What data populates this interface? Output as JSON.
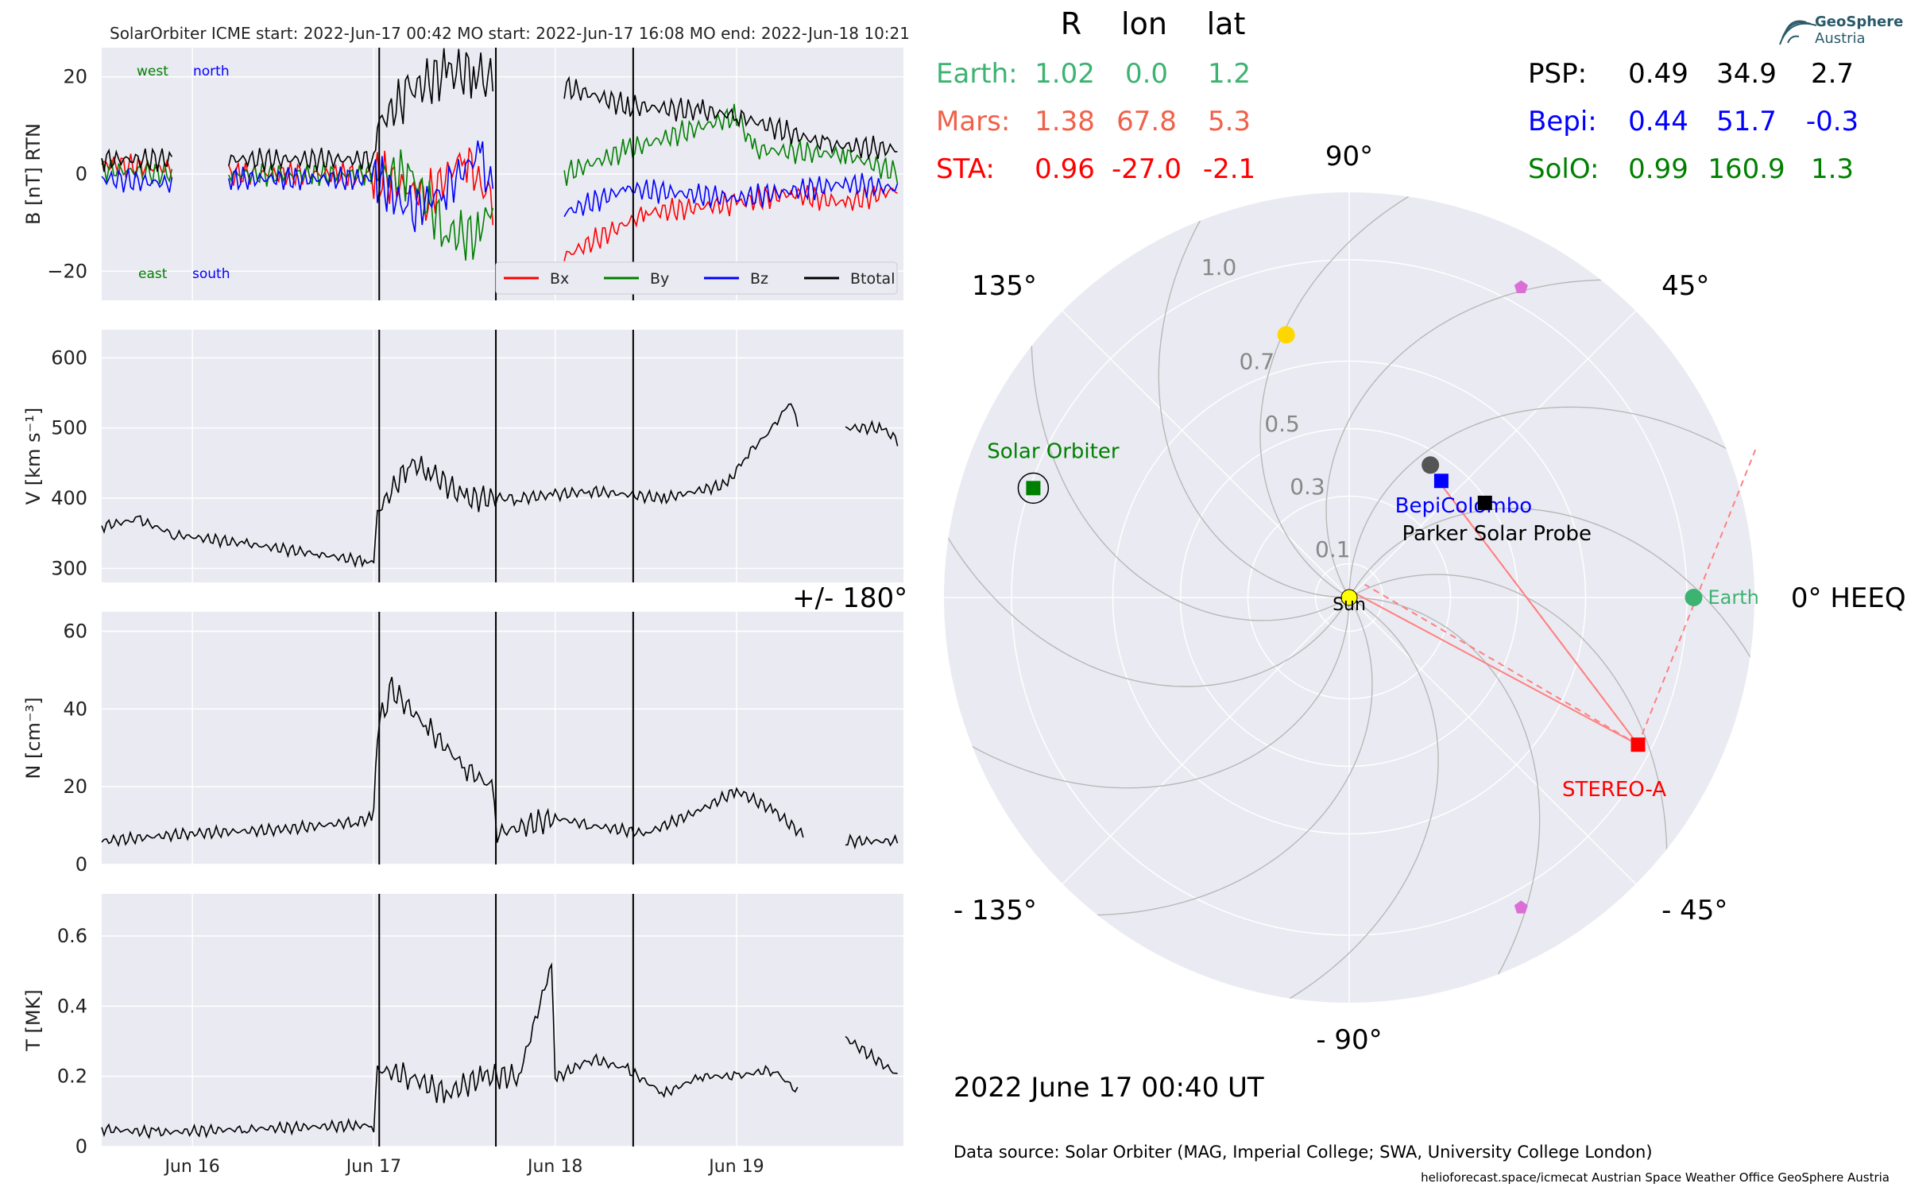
{
  "header": {
    "title": "SolarOrbiter    ICME start: 2022-Jun-17 00:42   MO start: 2022-Jun-17 16:08   MO end: 2022-Jun-18 10:21"
  },
  "logo": {
    "line1": "GeoSphere",
    "line2": "Austria"
  },
  "position_table": {
    "headers": [
      "R",
      "lon",
      "lat"
    ],
    "left_rows": [
      {
        "name": "Earth:",
        "R": "1.02",
        "lon": "0.0",
        "lat": "1.2",
        "color": "#3cb371"
      },
      {
        "name": "Mars:",
        "R": "1.38",
        "lon": "67.8",
        "lat": "5.3",
        "color": "#f0614a"
      },
      {
        "name": "STA:",
        "R": "0.96",
        "lon": "-27.0",
        "lat": "-2.1",
        "color": "#ff0000"
      }
    ],
    "right_rows": [
      {
        "name": "PSP:",
        "R": "0.49",
        "lon": "34.9",
        "lat": "2.7",
        "color": "#000000"
      },
      {
        "name": "Bepi:",
        "R": "0.44",
        "lon": "51.7",
        "lat": "-0.3",
        "color": "#0000ff"
      },
      {
        "name": "SolO:",
        "R": "0.99",
        "lon": "160.9",
        "lat": "1.3",
        "color": "#008000"
      }
    ]
  },
  "polar": {
    "angle_labels": [
      "0° HEEQ",
      "45°",
      "90°",
      "135°",
      "+/- 180°",
      "- 135°",
      "- 90°",
      "- 45°"
    ],
    "radial_labels": [
      "0.1",
      "0.3",
      "0.5",
      "0.7",
      "1.0"
    ],
    "date_label": "2022 June 17  00:40 UT",
    "bodies": [
      {
        "name": "Earth",
        "r": 1.02,
        "lon": 0.0,
        "color": "#3cb371",
        "marker": "circle"
      },
      {
        "name": "STEREO-A",
        "r": 0.96,
        "lon": -27.0,
        "color": "#ff0000",
        "marker": "square"
      },
      {
        "name": "Solar Orbiter",
        "r": 0.99,
        "lon": 160.9,
        "color": "#008000",
        "marker": "square"
      },
      {
        "name": "BepiColombo",
        "r": 0.44,
        "lon": 51.7,
        "color": "#0000ff",
        "marker": "square"
      },
      {
        "name": "Parker Solar Probe",
        "r": 0.49,
        "lon": 34.9,
        "color": "#000000",
        "marker": "square"
      },
      {
        "name": "Sun",
        "r": 0,
        "lon": 0,
        "color": "#ffff00",
        "marker": "circle"
      }
    ],
    "unlabeled_markers": [
      {
        "r": 0.8,
        "lon": 103.5,
        "color": "#ffd700",
        "marker": "circle"
      },
      {
        "r": 0.46,
        "lon": 58.5,
        "color": "#555555",
        "marker": "circle"
      },
      {
        "r": 1.05,
        "lon": 61,
        "color": "#da70d6",
        "marker": "pentagon"
      },
      {
        "r": 1.05,
        "lon": -61,
        "color": "#da70d6",
        "marker": "pentagon"
      }
    ]
  },
  "footer": {
    "source": "Data source: Solar Orbiter (MAG, Imperial College; SWA, University College London)",
    "credits": "helioforecast.space/icmecat   Austrian Space Weather Office   GeoSphere Austria"
  },
  "chart_data": [
    {
      "type": "line",
      "ylabel": "B [nT] RTN",
      "ylim": [
        -26,
        26
      ],
      "yticks": [
        20,
        0,
        -20
      ],
      "ytick_labels": [
        "20",
        "0",
        "−20"
      ],
      "annotations": {
        "top_left": "west",
        "top_right": "north",
        "bottom_left": "east",
        "bottom_right": "south"
      },
      "annotation_colors": {
        "west": "#008000",
        "north": "#0000ff",
        "east": "#008000",
        "south": "#0000ff"
      },
      "legend": [
        "Bx",
        "By",
        "Bz",
        "Btotal"
      ],
      "legend_placement": "lower-right",
      "series": [
        {
          "name": "Bx",
          "color": "#ff0000",
          "x": [
            15.5,
            15.9,
            15.95,
            16.15,
            16.2,
            17.0,
            17.02,
            17.3,
            17.5,
            17.63,
            17.67,
            17.85,
            18.05,
            18.5,
            19.0,
            19.3,
            19.6,
            19.9
          ],
          "y": [
            2,
            1,
            null,
            null,
            0,
            0,
            0,
            -5,
            4,
            -5,
            -7,
            null,
            -17,
            -8,
            -6,
            -4,
            -6,
            -3
          ]
        },
        {
          "name": "By",
          "color": "#008000",
          "x": [
            15.5,
            15.9,
            15.95,
            16.15,
            16.2,
            17.0,
            17.02,
            17.2,
            17.4,
            17.6,
            17.63,
            17.67,
            17.85,
            18.05,
            18.4,
            19.0,
            19.1,
            19.6,
            19.9
          ],
          "y": [
            1,
            0,
            null,
            null,
            0,
            0,
            0,
            0,
            -12,
            -13,
            -5,
            -15,
            null,
            0,
            5,
            12,
            5,
            4,
            0
          ]
        },
        {
          "name": "Bz",
          "color": "#0000ff",
          "x": [
            15.5,
            15.9,
            15.95,
            16.15,
            16.2,
            17.0,
            17.02,
            17.2,
            17.4,
            17.6,
            17.63,
            17.67,
            17.85,
            18.05,
            18.4,
            19.0,
            19.6,
            19.9
          ],
          "y": [
            -1,
            -2,
            null,
            null,
            -1,
            -1,
            -1,
            -8,
            -3,
            5,
            -3,
            0,
            null,
            -8,
            -3,
            -5,
            -2,
            -3
          ]
        },
        {
          "name": "Btotal",
          "color": "#000000",
          "x": [
            15.5,
            15.9,
            15.95,
            16.15,
            16.2,
            17.0,
            17.02,
            17.2,
            17.4,
            17.55,
            17.63,
            17.67,
            17.85,
            18.05,
            18.4,
            18.8,
            19.0,
            19.5,
            19.9
          ],
          "y": [
            3,
            3,
            null,
            null,
            3,
            3,
            10,
            17,
            21,
            21,
            20,
            19,
            null,
            18,
            14,
            13,
            12,
            6,
            5
          ]
        }
      ]
    },
    {
      "type": "line",
      "ylabel": "V [km s⁻¹]",
      "ylim": [
        280,
        640
      ],
      "yticks": [
        300,
        400,
        500,
        600
      ],
      "series": [
        {
          "name": "V",
          "color": "#000000",
          "x": [
            15.5,
            15.7,
            15.9,
            16.3,
            16.7,
            16.95,
            17.0,
            17.02,
            17.2,
            17.3,
            17.5,
            17.8,
            18.0,
            18.2,
            18.6,
            18.95,
            19.05,
            19.2,
            19.3,
            19.35,
            19.55,
            19.6,
            19.8,
            19.9
          ],
          "y": [
            360,
            370,
            348,
            335,
            320,
            310,
            310,
            380,
            450,
            440,
            400,
            400,
            405,
            410,
            400,
            420,
            460,
            500,
            540,
            490,
            null,
            500,
            500,
            480
          ]
        }
      ]
    },
    {
      "type": "line",
      "ylabel": "N [cm⁻³]",
      "ylim": [
        0,
        65
      ],
      "yticks": [
        0,
        20,
        40,
        60
      ],
      "series": [
        {
          "name": "N",
          "color": "#000000",
          "x": [
            15.5,
            16.0,
            16.5,
            16.9,
            17.0,
            17.02,
            17.1,
            17.3,
            17.5,
            17.65,
            17.68,
            18.0,
            18.2,
            18.5,
            18.8,
            19.0,
            19.2,
            19.38,
            19.55,
            19.6,
            19.9
          ],
          "y": [
            6,
            8,
            9,
            11,
            12,
            35,
            45,
            35,
            25,
            20,
            8,
            12,
            10,
            8,
            14,
            19,
            14,
            7,
            null,
            6,
            6
          ]
        }
      ]
    },
    {
      "type": "line",
      "ylabel": "T [MK]",
      "ylim": [
        0,
        0.72
      ],
      "yticks": [
        0.0,
        0.2,
        0.4,
        0.6
      ],
      "xticks": [
        16,
        17,
        18,
        19
      ],
      "xtick_labels": [
        "Jun 16",
        "Jun 17",
        "Jun 18",
        "Jun 19"
      ],
      "xlim": [
        15.5,
        19.92
      ],
      "series": [
        {
          "name": "T",
          "color": "#000000",
          "x": [
            15.5,
            15.8,
            16.3,
            16.9,
            17.0,
            17.02,
            17.2,
            17.4,
            17.6,
            17.8,
            17.98,
            18.0,
            18.02,
            18.2,
            18.4,
            18.6,
            18.8,
            19.0,
            19.2,
            19.35,
            19.55,
            19.6,
            19.9
          ],
          "y": [
            0.05,
            0.04,
            0.05,
            0.06,
            0.06,
            0.22,
            0.2,
            0.15,
            0.2,
            0.2,
            0.52,
            0.2,
            0.2,
            0.25,
            0.22,
            0.15,
            0.2,
            0.2,
            0.22,
            0.15,
            null,
            0.31,
            0.2
          ]
        }
      ]
    }
  ],
  "event_markers_x": [
    17.03,
    17.673,
    18.43
  ]
}
